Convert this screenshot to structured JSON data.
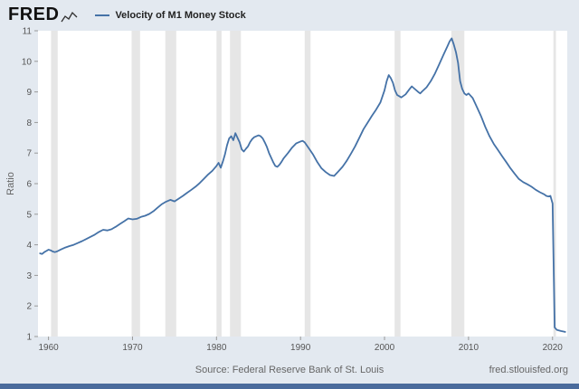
{
  "header": {
    "logo_text": "FRED",
    "legend_label": "Velocity of M1 Money Stock"
  },
  "axes": {
    "y_label": "Ratio"
  },
  "footer": {
    "source": "Source: Federal Reserve Bank of St. Louis",
    "site": "fred.stlouisfed.org"
  },
  "colors": {
    "line": "#4572a7",
    "recession": "#e6e6e6",
    "plot_bg": "#ffffff",
    "frame_bg": "#e3e9f0",
    "bottom_bar": "#4a6b9c",
    "tick_text": "#555555",
    "tick_mark": "#999999"
  },
  "chart_data": {
    "type": "line",
    "title": "Velocity of M1 Money Stock",
    "xlabel": "",
    "ylabel": "Ratio",
    "x_range": [
      1958.75,
      2021.75
    ],
    "y_range": [
      1,
      11
    ],
    "x_ticks": [
      1960,
      1970,
      1980,
      1990,
      2000,
      2010,
      2020
    ],
    "y_ticks": [
      1,
      2,
      3,
      4,
      5,
      6,
      7,
      8,
      9,
      10,
      11
    ],
    "grid": false,
    "legend_position": "top-left",
    "recessions": [
      [
        1960.3,
        1961.1
      ],
      [
        1969.9,
        1970.9
      ],
      [
        1973.9,
        1975.2
      ],
      [
        1980.0,
        1980.6
      ],
      [
        1981.6,
        1982.9
      ],
      [
        1990.5,
        1991.2
      ],
      [
        2001.2,
        2001.9
      ],
      [
        2007.95,
        2009.5
      ],
      [
        2020.1,
        2020.4
      ]
    ],
    "series": [
      {
        "name": "Velocity of M1 Money Stock",
        "points": [
          [
            1959,
            3.72
          ],
          [
            1959.25,
            3.7
          ],
          [
            1959.5,
            3.76
          ],
          [
            1959.75,
            3.8
          ],
          [
            1960,
            3.84
          ],
          [
            1960.25,
            3.82
          ],
          [
            1960.5,
            3.78
          ],
          [
            1960.75,
            3.76
          ],
          [
            1961,
            3.78
          ],
          [
            1961.5,
            3.85
          ],
          [
            1962,
            3.91
          ],
          [
            1962.5,
            3.96
          ],
          [
            1963,
            4.0
          ],
          [
            1963.5,
            4.06
          ],
          [
            1964,
            4.12
          ],
          [
            1964.5,
            4.19
          ],
          [
            1965,
            4.26
          ],
          [
            1965.5,
            4.33
          ],
          [
            1966,
            4.42
          ],
          [
            1966.5,
            4.49
          ],
          [
            1967,
            4.47
          ],
          [
            1967.5,
            4.51
          ],
          [
            1968,
            4.59
          ],
          [
            1968.5,
            4.68
          ],
          [
            1969,
            4.77
          ],
          [
            1969.5,
            4.86
          ],
          [
            1970,
            4.83
          ],
          [
            1970.5,
            4.85
          ],
          [
            1971,
            4.91
          ],
          [
            1971.5,
            4.95
          ],
          [
            1972,
            5.01
          ],
          [
            1972.5,
            5.1
          ],
          [
            1973,
            5.22
          ],
          [
            1973.5,
            5.33
          ],
          [
            1974,
            5.41
          ],
          [
            1974.5,
            5.47
          ],
          [
            1975,
            5.42
          ],
          [
            1975.5,
            5.51
          ],
          [
            1976,
            5.6
          ],
          [
            1976.5,
            5.7
          ],
          [
            1977,
            5.8
          ],
          [
            1977.5,
            5.9
          ],
          [
            1978,
            6.02
          ],
          [
            1978.5,
            6.16
          ],
          [
            1979,
            6.3
          ],
          [
            1979.5,
            6.42
          ],
          [
            1980,
            6.58
          ],
          [
            1980.25,
            6.68
          ],
          [
            1980.5,
            6.52
          ],
          [
            1980.75,
            6.72
          ],
          [
            1981,
            6.95
          ],
          [
            1981.25,
            7.25
          ],
          [
            1981.5,
            7.48
          ],
          [
            1981.75,
            7.55
          ],
          [
            1982,
            7.42
          ],
          [
            1982.25,
            7.65
          ],
          [
            1982.5,
            7.5
          ],
          [
            1982.75,
            7.35
          ],
          [
            1983,
            7.12
          ],
          [
            1983.25,
            7.05
          ],
          [
            1983.5,
            7.14
          ],
          [
            1983.75,
            7.22
          ],
          [
            1984,
            7.36
          ],
          [
            1984.25,
            7.46
          ],
          [
            1984.5,
            7.52
          ],
          [
            1985,
            7.58
          ],
          [
            1985.25,
            7.55
          ],
          [
            1985.5,
            7.48
          ],
          [
            1985.75,
            7.35
          ],
          [
            1986,
            7.2
          ],
          [
            1986.25,
            7.0
          ],
          [
            1986.5,
            6.85
          ],
          [
            1986.75,
            6.7
          ],
          [
            1987,
            6.58
          ],
          [
            1987.25,
            6.55
          ],
          [
            1987.5,
            6.62
          ],
          [
            1987.75,
            6.72
          ],
          [
            1988,
            6.83
          ],
          [
            1988.5,
            7.0
          ],
          [
            1989,
            7.18
          ],
          [
            1989.5,
            7.32
          ],
          [
            1990,
            7.38
          ],
          [
            1990.25,
            7.4
          ],
          [
            1990.5,
            7.35
          ],
          [
            1991,
            7.15
          ],
          [
            1991.5,
            6.95
          ],
          [
            1992,
            6.7
          ],
          [
            1992.5,
            6.5
          ],
          [
            1993,
            6.38
          ],
          [
            1993.5,
            6.28
          ],
          [
            1994,
            6.25
          ],
          [
            1994.5,
            6.4
          ],
          [
            1995,
            6.55
          ],
          [
            1995.5,
            6.75
          ],
          [
            1996,
            6.98
          ],
          [
            1996.5,
            7.22
          ],
          [
            1997,
            7.5
          ],
          [
            1997.5,
            7.78
          ],
          [
            1998,
            8.0
          ],
          [
            1998.5,
            8.22
          ],
          [
            1999,
            8.42
          ],
          [
            1999.5,
            8.65
          ],
          [
            2000,
            9.05
          ],
          [
            2000.25,
            9.35
          ],
          [
            2000.5,
            9.55
          ],
          [
            2000.75,
            9.45
          ],
          [
            2001,
            9.3
          ],
          [
            2001.25,
            9.05
          ],
          [
            2001.5,
            8.9
          ],
          [
            2002,
            8.82
          ],
          [
            2002.5,
            8.92
          ],
          [
            2003,
            9.1
          ],
          [
            2003.25,
            9.18
          ],
          [
            2003.5,
            9.12
          ],
          [
            2004,
            9.0
          ],
          [
            2004.25,
            8.95
          ],
          [
            2004.5,
            9.02
          ],
          [
            2005,
            9.15
          ],
          [
            2005.5,
            9.35
          ],
          [
            2006,
            9.6
          ],
          [
            2006.5,
            9.9
          ],
          [
            2007,
            10.2
          ],
          [
            2007.5,
            10.5
          ],
          [
            2007.75,
            10.65
          ],
          [
            2008,
            10.75
          ],
          [
            2008.25,
            10.55
          ],
          [
            2008.5,
            10.3
          ],
          [
            2008.75,
            9.95
          ],
          [
            2009,
            9.35
          ],
          [
            2009.25,
            9.1
          ],
          [
            2009.5,
            8.95
          ],
          [
            2009.75,
            8.9
          ],
          [
            2010,
            8.95
          ],
          [
            2010.5,
            8.8
          ],
          [
            2011,
            8.5
          ],
          [
            2011.5,
            8.2
          ],
          [
            2012,
            7.85
          ],
          [
            2012.5,
            7.55
          ],
          [
            2013,
            7.3
          ],
          [
            2013.5,
            7.1
          ],
          [
            2014,
            6.9
          ],
          [
            2014.5,
            6.7
          ],
          [
            2015,
            6.5
          ],
          [
            2015.5,
            6.32
          ],
          [
            2016,
            6.15
          ],
          [
            2016.5,
            6.05
          ],
          [
            2017,
            5.98
          ],
          [
            2017.5,
            5.9
          ],
          [
            2018,
            5.8
          ],
          [
            2018.5,
            5.72
          ],
          [
            2019,
            5.65
          ],
          [
            2019.25,
            5.6
          ],
          [
            2019.5,
            5.58
          ],
          [
            2019.75,
            5.6
          ],
          [
            2020,
            5.35
          ],
          [
            2020.25,
            1.3
          ],
          [
            2020.5,
            1.22
          ],
          [
            2021,
            1.18
          ],
          [
            2021.5,
            1.15
          ]
        ]
      }
    ]
  }
}
